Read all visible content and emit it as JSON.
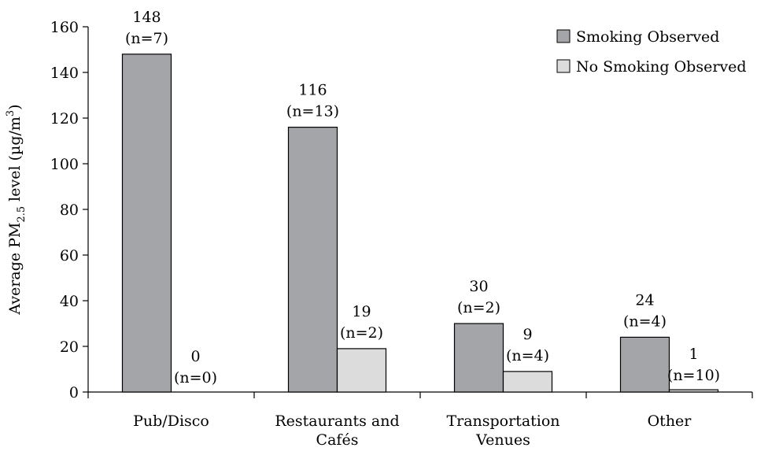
{
  "chart_data": {
    "type": "bar",
    "categories": [
      "Pub/Disco",
      "Restaurants and Cafés",
      "Transportation Venues",
      "Other"
    ],
    "category_lines": [
      [
        "Pub/Disco"
      ],
      [
        "Restaurants and",
        "Cafés"
      ],
      [
        "Transportation",
        "Venues"
      ],
      [
        "Other"
      ]
    ],
    "series": [
      {
        "name": "Smoking Observed",
        "color": "#a4a5a9",
        "values": [
          148,
          116,
          30,
          24
        ],
        "labels": [
          "148",
          "116",
          "30",
          "24"
        ],
        "n_labels": [
          "(n=7)",
          "(n=13)",
          "(n=2)",
          "(n=4)"
        ]
      },
      {
        "name": "No Smoking Observed",
        "color": "#dcdcdc",
        "values": [
          0,
          19,
          9,
          1
        ],
        "labels": [
          "0",
          "19",
          "9",
          "1"
        ],
        "n_labels": [
          "(n=0)",
          "(n=2)",
          "(n=4)",
          "(n=10)"
        ]
      }
    ],
    "ylabel": {
      "prefix": "Average PM",
      "subscript": "2.5",
      "middle": " level (µg/m",
      "superscript": "3",
      "suffix": ")"
    },
    "ylim": [
      0,
      160
    ],
    "yticks": [
      "0",
      "20",
      "40",
      "60",
      "80",
      "100",
      "120",
      "140",
      "160"
    ],
    "grid": false,
    "legend_position": "top-right"
  }
}
